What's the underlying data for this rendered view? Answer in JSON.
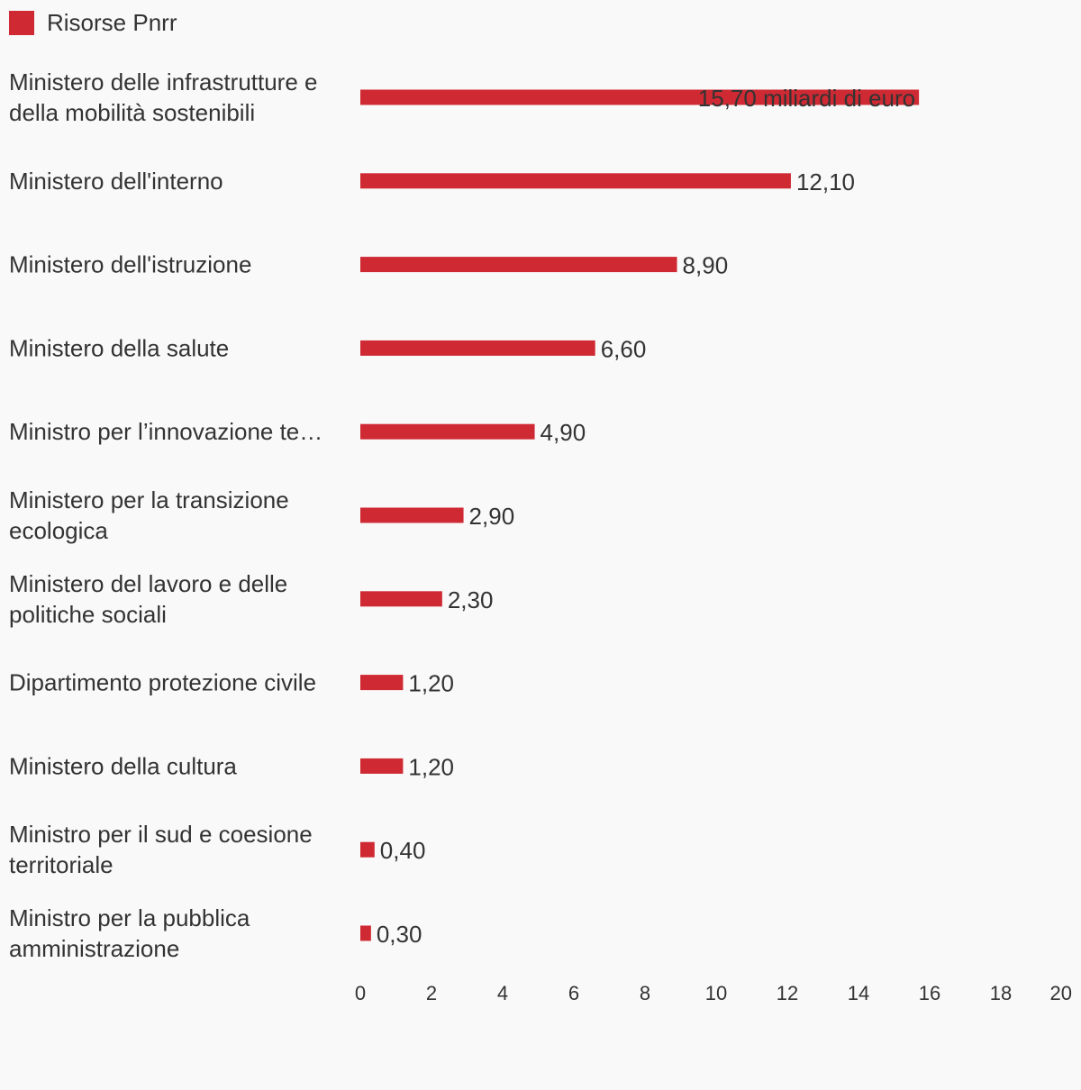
{
  "chart_data": {
    "type": "bar",
    "orientation": "horizontal",
    "legend_position": "top-left",
    "grid": false,
    "series": [
      {
        "name": "Risorse Pnrr",
        "color": "#cf2a33"
      }
    ],
    "categories": [
      {
        "label_lines": [
          "Ministero delle infrastrutture e",
          "della mobilità sostenibili"
        ],
        "value": 15.7,
        "value_label": "15,70 miliardi di euro"
      },
      {
        "label_lines": [
          "Ministero dell'interno"
        ],
        "value": 12.1,
        "value_label": "12,10"
      },
      {
        "label_lines": [
          "Ministero dell'istruzione"
        ],
        "value": 8.9,
        "value_label": "8,90"
      },
      {
        "label_lines": [
          "Ministero della salute"
        ],
        "value": 6.6,
        "value_label": "6,60"
      },
      {
        "label_lines": [
          "Ministro per l’innovazione te…"
        ],
        "value": 4.9,
        "value_label": "4,90"
      },
      {
        "label_lines": [
          "Ministero per la transizione",
          "ecologica"
        ],
        "value": 2.9,
        "value_label": "2,90"
      },
      {
        "label_lines": [
          "Ministero del lavoro e delle",
          "politiche sociali"
        ],
        "value": 2.3,
        "value_label": "2,30"
      },
      {
        "label_lines": [
          "Dipartimento protezione civile"
        ],
        "value": 1.2,
        "value_label": "1,20"
      },
      {
        "label_lines": [
          "Ministero della cultura"
        ],
        "value": 1.2,
        "value_label": "1,20"
      },
      {
        "label_lines": [
          "Ministro per il sud e coesione",
          "territoriale"
        ],
        "value": 0.4,
        "value_label": "0,40"
      },
      {
        "label_lines": [
          "Ministro per la pubblica",
          "amministrazione"
        ],
        "value": 0.3,
        "value_label": "0,30"
      }
    ],
    "xlim": [
      0,
      20
    ],
    "x_ticks": [
      "0",
      "2",
      "4",
      "6",
      "8",
      "10",
      "12",
      "14",
      "16",
      "18",
      "20"
    ]
  }
}
